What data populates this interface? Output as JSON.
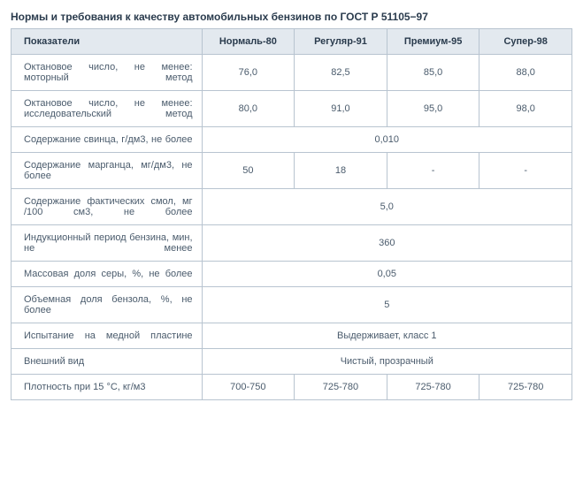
{
  "title": "Нормы и требования к качеству автомобильных бензинов по ГОСТ Р 51105−97",
  "headers": {
    "param": "Показатели",
    "c1": "Нормаль-80",
    "c2": "Регуляр-91",
    "c3": "Премиум-95",
    "c4": "Супер-98"
  },
  "rows": {
    "r1": {
      "label": "Октановое число, не менее: моторный метод",
      "v1": "76,0",
      "v2": "82,5",
      "v3": "85,0",
      "v4": "88,0"
    },
    "r2": {
      "label": "Октановое число, не менее: исследовательский метод",
      "v1": "80,0",
      "v2": "91,0",
      "v3": "95,0",
      "v4": "98,0"
    },
    "r3": {
      "label": "Содержание свинца, г/дм3, не более",
      "merged": "0,010"
    },
    "r4": {
      "label": "Содержание марганца, мг/дм3, не более",
      "v1": "50",
      "v2": "18",
      "v3": "-",
      "v4": "-"
    },
    "r5": {
      "label": "Содержание фактических смол, мг /100 см3, не более",
      "merged": "5,0"
    },
    "r6": {
      "label": "Индукционный период бензина, мин, не менее",
      "merged": "360"
    },
    "r7": {
      "label": "Массовая доля серы, %, не более",
      "merged": "0,05"
    },
    "r8": {
      "label": "Объемная доля бензола, %, не более",
      "merged": "5"
    },
    "r9": {
      "label": "Испытание на медной пластине",
      "merged": "Выдерживает, класс 1"
    },
    "r10": {
      "label": "Внешний вид",
      "merged": "Чистый, прозрачный"
    },
    "r11": {
      "label": "Плотность при 15 °С, кг/м3",
      "v1": "700-750",
      "v2": "725-780",
      "v3": "725-780",
      "v4": "725-780"
    }
  },
  "style": {
    "border_color": "#b8c4d0",
    "header_bg": "#e3e9ef",
    "text_color": "#33475c",
    "title_fontsize": 12,
    "body_fontsize": 11
  }
}
